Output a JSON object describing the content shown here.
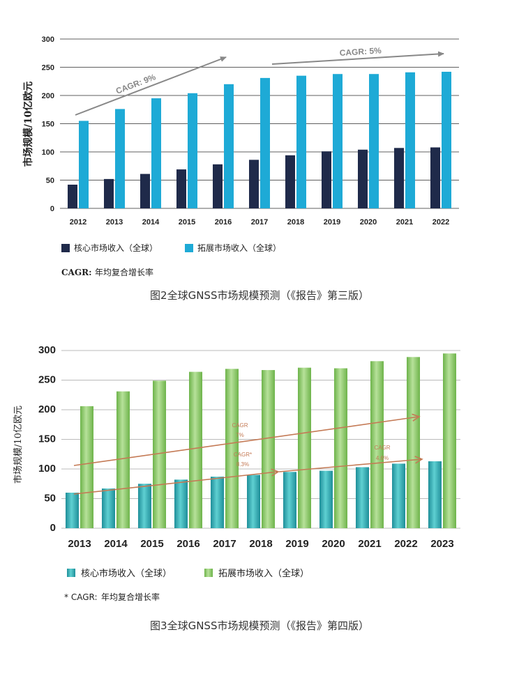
{
  "chart_data": [
    {
      "type": "bar",
      "ylabel": "市场规模/10亿欧元",
      "ylim": [
        0,
        300
      ],
      "yticks": [
        "0",
        "50",
        "100",
        "150",
        "200",
        "250",
        "300"
      ],
      "categories": [
        "2012",
        "2013",
        "2014",
        "2015",
        "2016",
        "2017",
        "2018",
        "2019",
        "2020",
        "2021",
        "2022"
      ],
      "series": [
        {
          "name": "核心市场收入（全球）",
          "color": "#1f2a4a",
          "values": [
            42,
            52,
            61,
            69,
            78,
            86,
            94,
            101,
            104,
            107,
            108
          ]
        },
        {
          "name": "拓展市场收入（全球）",
          "color": "#1eaad6",
          "values": [
            155,
            176,
            195,
            204,
            220,
            231,
            235,
            238,
            238,
            241,
            242
          ]
        }
      ],
      "annotations": [
        "CAGR: 9%",
        "CAGR: 5%"
      ],
      "note_label": "CAGR:",
      "note_text": "年均复合增长率",
      "caption": "图2全球GNSS市场规模预测（《报告》第三版）"
    },
    {
      "type": "bar",
      "ylabel": "市场规模/10亿欧元",
      "ylim": [
        0,
        300
      ],
      "yticks": [
        "0",
        "50",
        "100",
        "150",
        "200",
        "250",
        "300"
      ],
      "categories": [
        "2013",
        "2014",
        "2015",
        "2016",
        "2017",
        "2018",
        "2019",
        "2020",
        "2021",
        "2022",
        "2023"
      ],
      "series": [
        {
          "name": "核心市场收入（全球）",
          "color": "#2bb5b8",
          "values": [
            60,
            67,
            75,
            82,
            87,
            90,
            95,
            97,
            103,
            109,
            113
          ]
        },
        {
          "name": "拓展市场收入（全球）",
          "color": "#8cc96a",
          "values": [
            206,
            231,
            249,
            264,
            269,
            267,
            271,
            270,
            282,
            289,
            295
          ]
        }
      ],
      "annotations": [
        "CAGR",
        "7%",
        "CAGR*",
        "8.3%",
        "CAGR",
        "4.6%"
      ],
      "note_label": "* CAGR:",
      "note_text": "年均复合增长率",
      "caption": "图3全球GNSS市场规模预测（《报告》第四版）"
    }
  ]
}
